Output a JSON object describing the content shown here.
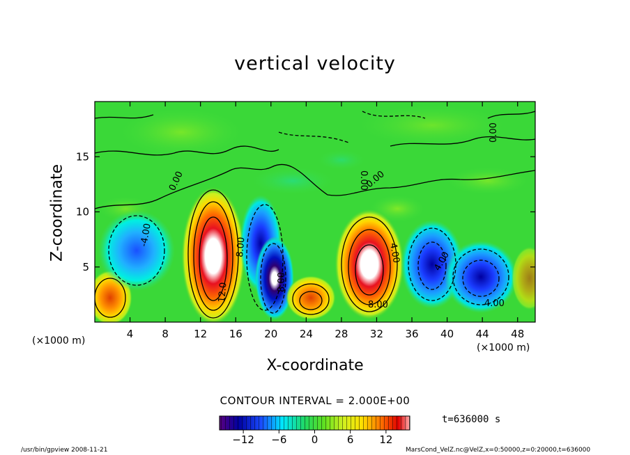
{
  "chart_data": {
    "type": "heatmap",
    "title": "vertical velocity",
    "xlabel": "X-coordinate",
    "ylabel": "Z-coordinate",
    "x_unit": "(×1000 m)",
    "xlim": [
      0,
      50
    ],
    "ylim": [
      0,
      20
    ],
    "x_ticks": [
      4,
      8,
      12,
      16,
      20,
      24,
      28,
      32,
      36,
      40,
      44,
      48
    ],
    "y_ticks": [
      5,
      10,
      15
    ],
    "contour_interval": "CONTOUR INTERVAL = 2.000E+00",
    "contour_labels": [
      "0.00",
      "4.00",
      "8.00",
      "12.0",
      "-4.00"
    ],
    "colorbar": {
      "range": [
        -16,
        16
      ],
      "ticks": [
        -12,
        -6,
        0,
        6,
        12
      ],
      "colors": [
        "#5a0080",
        "#0000a0",
        "#1a4cff",
        "#00e8ff",
        "#20e040",
        "#c8f020",
        "#ffe000",
        "#ff7000",
        "#e00000",
        "#ffffff"
      ]
    },
    "cells": [
      {
        "x": 1.8,
        "z": 2.4,
        "value": 9
      },
      {
        "x": 4.0,
        "z": 7.0,
        "value": -6
      },
      {
        "x": 13.5,
        "z": 6.0,
        "value": 16
      },
      {
        "x": 18.6,
        "z": 6.4,
        "value": -10
      },
      {
        "x": 20.4,
        "z": 3.2,
        "value": -16
      },
      {
        "x": 24.6,
        "z": 2.4,
        "value": 9
      },
      {
        "x": 31.0,
        "z": 5.0,
        "value": 16
      },
      {
        "x": 38.2,
        "z": 4.8,
        "value": -10
      },
      {
        "x": 43.8,
        "z": 3.8,
        "value": -12
      },
      {
        "x": 49.2,
        "z": 4.6,
        "value": 4
      }
    ]
  },
  "labels": {
    "timestamp": "t=636000 s",
    "footer_left": "/usr/bin/gpview  2008-11-21",
    "footer_right": "MarsCond_VelZ.nc@VelZ,x=0:50000,z=0:20000,t=636000"
  }
}
